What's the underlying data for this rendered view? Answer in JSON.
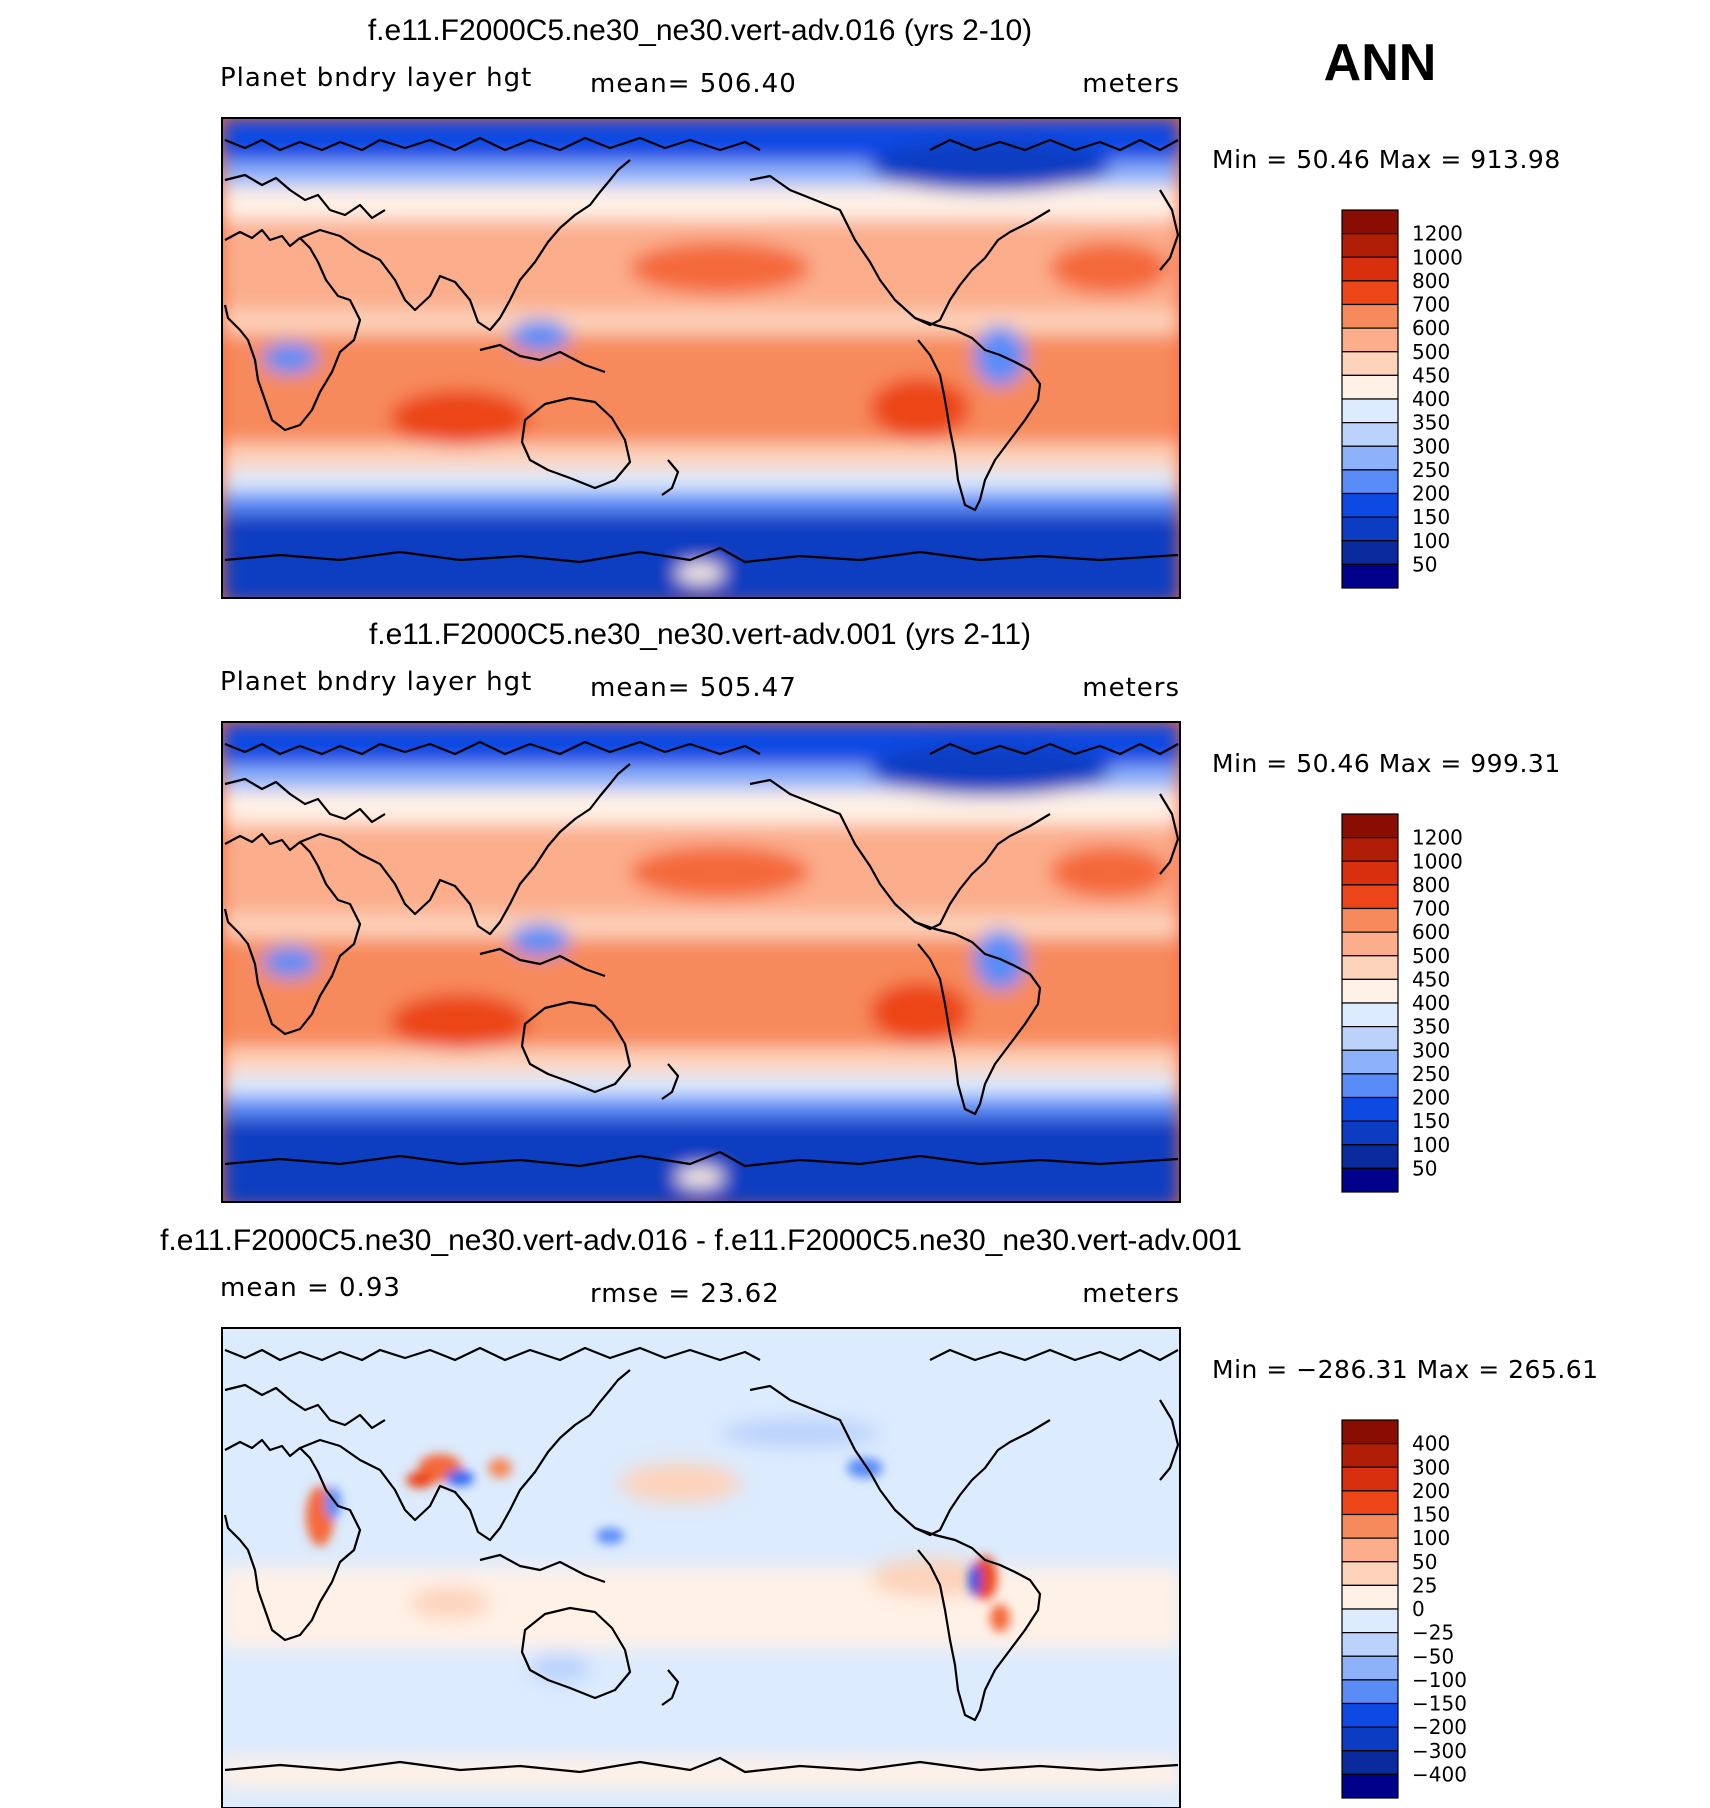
{
  "season": "ANN",
  "colors": {
    "abs": [
      "#00008a",
      "#0a2a9e",
      "#0b3cc1",
      "#0d4ae3",
      "#2b66f0",
      "#5a8cf7",
      "#8eb2fa",
      "#bad2fc",
      "#dcebfd",
      "#fff1e6",
      "#fdd3bb",
      "#fbad8c",
      "#f78a5c",
      "#f4693a",
      "#ec4518",
      "#d8300e",
      "#b01e07",
      "#8a0d03"
    ],
    "diff": [
      "#00008a",
      "#0a2a9e",
      "#0b3cc1",
      "#0d4ae3",
      "#2b66f0",
      "#5a8cf7",
      "#8eb2fa",
      "#bad2fc",
      "#dcebfd",
      "#fff1e6",
      "#fdd3bb",
      "#fbad8c",
      "#f78a5c",
      "#f4693a",
      "#ec4518",
      "#d8300e",
      "#b01e07",
      "#8a0d03"
    ]
  },
  "panels": [
    {
      "title": "f.e11.F2000C5.ne30_ne30.vert-adv.016 (yrs 2-10)",
      "left": "Planet bndry layer hgt",
      "center": "mean=  506.40",
      "units": "meters",
      "minmax": "Min =   50.46  Max  =  913.98",
      "kind": "abs",
      "ticks": [
        "1200",
        "1000",
        "800",
        "700",
        "600",
        "500",
        "450",
        "400",
        "350",
        "300",
        "250",
        "200",
        "150",
        "100",
        "50"
      ]
    },
    {
      "title": "f.e11.F2000C5.ne30_ne30.vert-adv.001 (yrs 2-11)",
      "left": "Planet bndry layer hgt",
      "center": "mean=  505.47",
      "units": "meters",
      "minmax": "Min =   50.46  Max  =  999.31",
      "kind": "abs",
      "ticks": [
        "1200",
        "1000",
        "800",
        "700",
        "600",
        "500",
        "450",
        "400",
        "350",
        "300",
        "250",
        "200",
        "150",
        "100",
        "50"
      ]
    },
    {
      "title": "f.e11.F2000C5.ne30_ne30.vert-adv.016 - f.e11.F2000C5.ne30_ne30.vert-adv.001",
      "left": "mean =     0.93",
      "center": "rmse =    23.62",
      "units": "meters",
      "minmax": "Min  =  −286.31  Max  =  265.61",
      "kind": "diff",
      "ticks": [
        "400",
        "300",
        "200",
        "150",
        "100",
        "50",
        "25",
        "0",
        "−25",
        "−50",
        "−100",
        "−150",
        "−200",
        "−300",
        "−400"
      ]
    }
  ]
}
